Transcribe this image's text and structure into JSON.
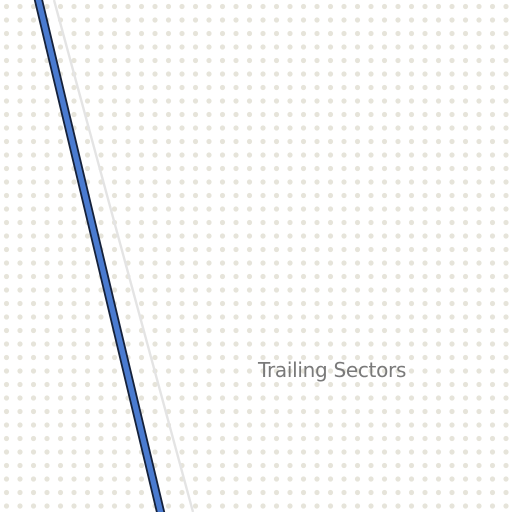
{
  "map": {
    "background_color": "#ffffff",
    "dot_color": "#e6e4da",
    "route_fill_color": "#4a7bd0",
    "route_outline_color": "#15213a",
    "secondary_line_color": "#e4e4e4",
    "label_color": "#7a7a7a",
    "area_label": "Trailing Sectors"
  }
}
